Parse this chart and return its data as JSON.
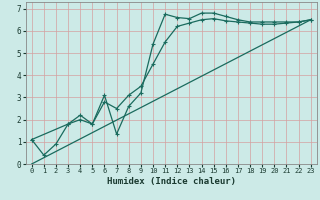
{
  "title": "",
  "xlabel": "Humidex (Indice chaleur)",
  "ylabel": "",
  "bg_color": "#cceae7",
  "grid_color": "#d4a0a0",
  "line_color": "#1a6b5e",
  "xlim": [
    -0.5,
    23.5
  ],
  "ylim": [
    0,
    7.3
  ],
  "xticks": [
    0,
    1,
    2,
    3,
    4,
    5,
    6,
    7,
    8,
    9,
    10,
    11,
    12,
    13,
    14,
    15,
    16,
    17,
    18,
    19,
    20,
    21,
    22,
    23
  ],
  "yticks": [
    0,
    1,
    2,
    3,
    4,
    5,
    6,
    7
  ],
  "line1_x": [
    0,
    1,
    2,
    3,
    4,
    5,
    6,
    7,
    8,
    9,
    10,
    11,
    12,
    13,
    14,
    15,
    16,
    17,
    18,
    19,
    20,
    21,
    22,
    23
  ],
  "line1_y": [
    1.1,
    0.4,
    0.9,
    1.8,
    2.0,
    1.8,
    3.1,
    1.35,
    2.6,
    3.2,
    5.4,
    6.75,
    6.6,
    6.55,
    6.8,
    6.8,
    6.65,
    6.5,
    6.4,
    6.4,
    6.4,
    6.4,
    6.4,
    6.5
  ],
  "line2_x": [
    0,
    3,
    4,
    5,
    6,
    7,
    8,
    9,
    10,
    11,
    12,
    13,
    14,
    15,
    16,
    17,
    18,
    19,
    20,
    21,
    22,
    23
  ],
  "line2_y": [
    1.1,
    1.8,
    2.2,
    1.8,
    2.8,
    2.5,
    3.1,
    3.5,
    4.5,
    5.5,
    6.2,
    6.35,
    6.5,
    6.55,
    6.45,
    6.4,
    6.35,
    6.3,
    6.3,
    6.35,
    6.4,
    6.5
  ],
  "line3_x": [
    0,
    23
  ],
  "line3_y": [
    0.0,
    6.5
  ],
  "marker": "+",
  "markersize": 3,
  "linewidth": 0.9
}
